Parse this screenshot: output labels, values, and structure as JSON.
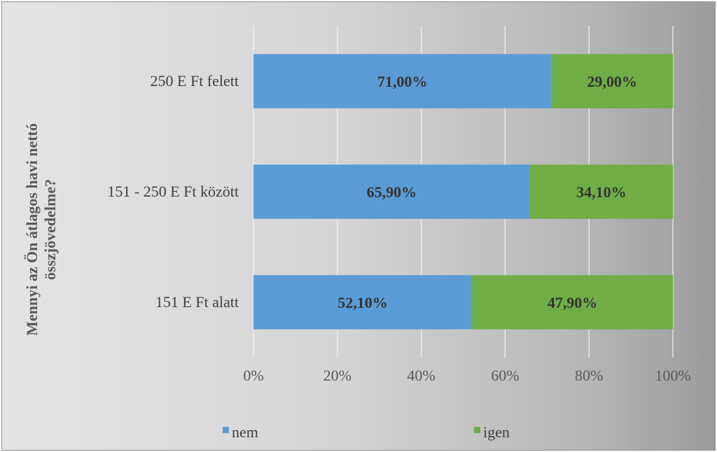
{
  "chart_data": {
    "type": "bar",
    "orientation": "horizontal",
    "stacked": "percent",
    "categories": [
      "250 E Ft felett",
      "151 - 250 E Ft között",
      "151 E Ft alatt"
    ],
    "series": [
      {
        "name": "nem",
        "color": "#5b9bd5",
        "values": [
          71.0,
          65.9,
          52.1
        ],
        "labels": [
          "71,00%",
          "65,90%",
          "52,10%"
        ]
      },
      {
        "name": "igen",
        "color": "#70ad47",
        "values": [
          29.0,
          34.1,
          47.9
        ],
        "labels": [
          "29,00%",
          "34,10%",
          "47,90%"
        ]
      }
    ],
    "xlim": [
      0,
      100
    ],
    "xticks": [
      "0%",
      "20%",
      "40%",
      "60%",
      "80%",
      "100%"
    ],
    "ylabel_lines": [
      "Mennyi az Ön átlagos havi nettó",
      "összjövedelme?"
    ],
    "grid": true,
    "legend_position": "bottom"
  }
}
